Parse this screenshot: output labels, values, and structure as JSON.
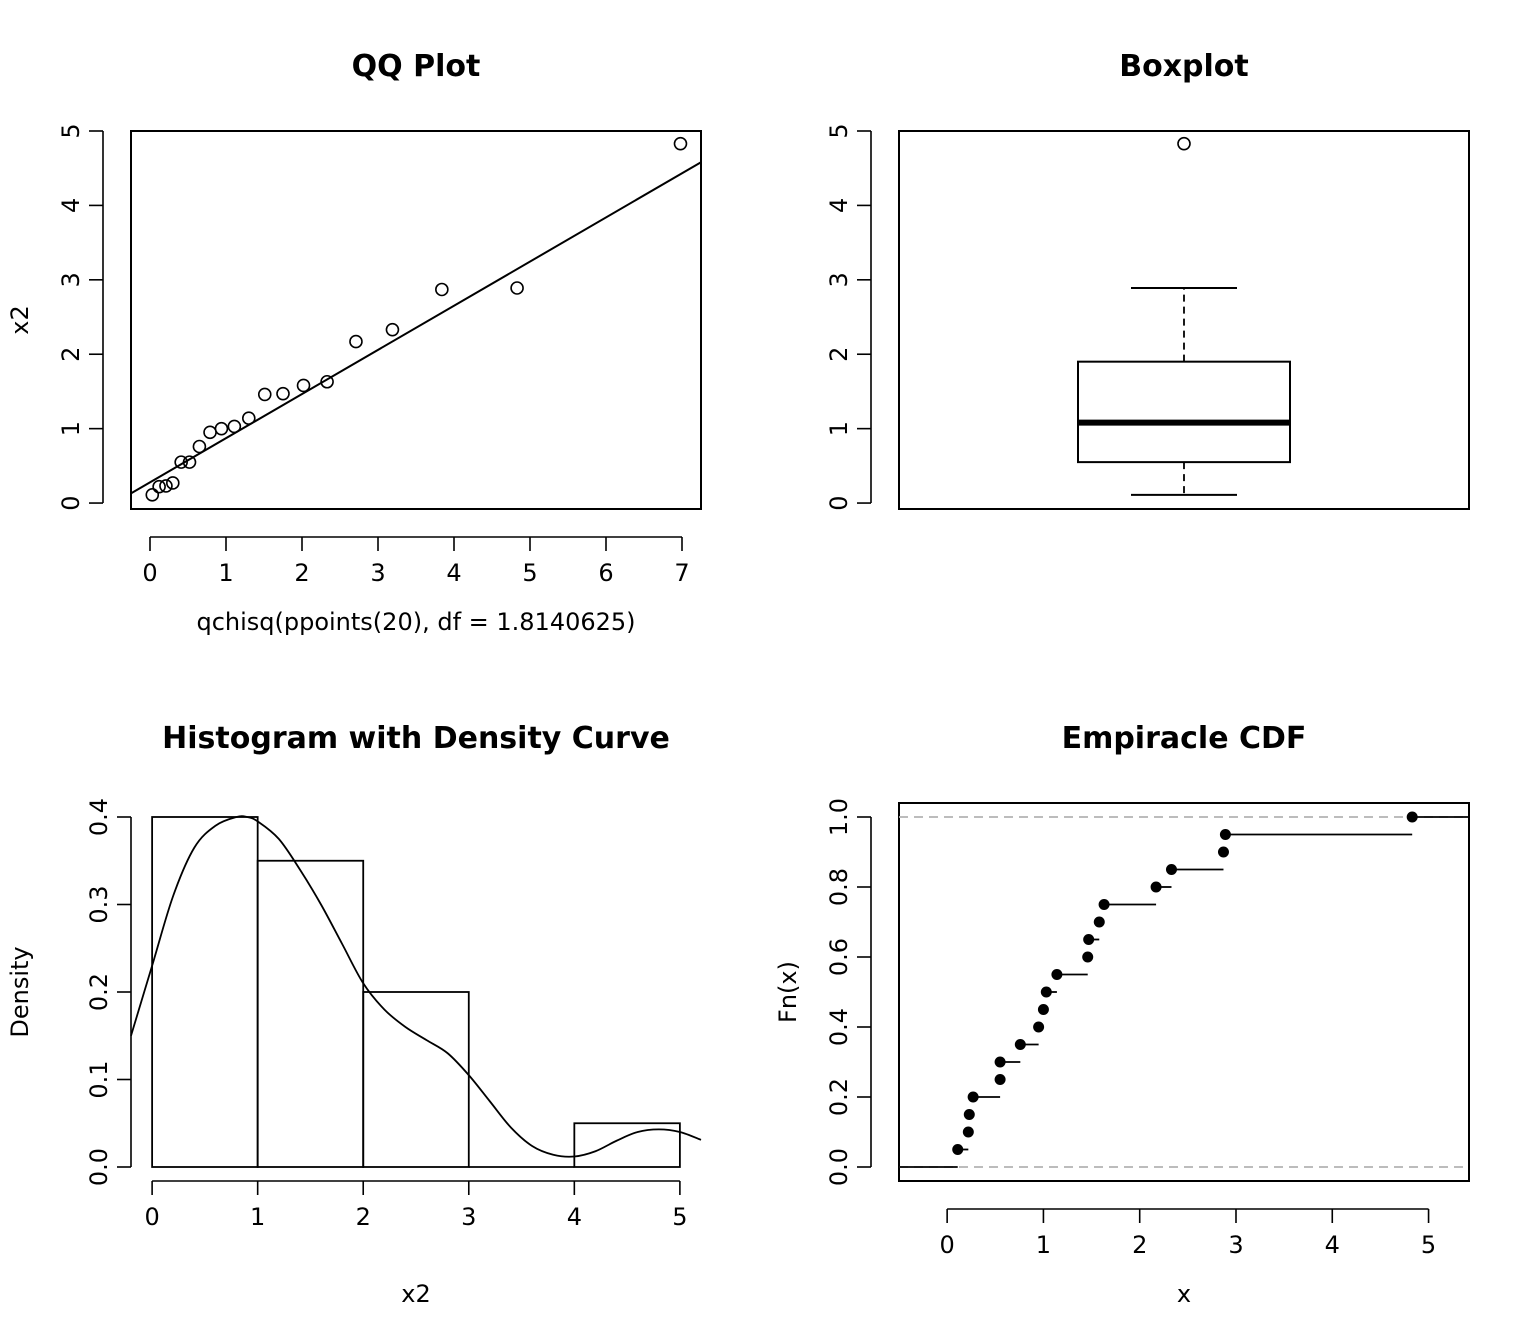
{
  "chart_data": [
    {
      "type": "scatter",
      "title": "QQ Plot",
      "xlabel": "qchisq(ppoints(20), df = 1.8140625)",
      "ylabel": "x2",
      "xlim": [
        -0.25,
        7.25
      ],
      "ylim": [
        -0.08,
        5.0
      ],
      "xticks": [
        "0",
        "1",
        "2",
        "3",
        "4",
        "5",
        "6",
        "7"
      ],
      "yticks": [
        "0",
        "1",
        "2",
        "3",
        "4",
        "5"
      ],
      "points": {
        "x": [
          0.03,
          0.12,
          0.21,
          0.3,
          0.41,
          0.52,
          0.65,
          0.79,
          0.94,
          1.11,
          1.3,
          1.51,
          1.75,
          2.02,
          2.33,
          2.71,
          3.19,
          3.84,
          4.83,
          6.98
        ],
        "y": [
          0.11,
          0.22,
          0.23,
          0.27,
          0.55,
          0.55,
          0.76,
          0.95,
          1.0,
          1.03,
          1.14,
          1.46,
          1.47,
          1.58,
          1.63,
          2.17,
          2.33,
          2.87,
          2.89,
          4.83
        ]
      },
      "line": {
        "x": [
          -0.25,
          7.25
        ],
        "y": [
          0.13,
          4.58
        ]
      },
      "point_style": "open-circle"
    },
    {
      "type": "box",
      "title": "Boxplot",
      "ylim": [
        -0.08,
        5.0
      ],
      "yticks": [
        "0",
        "1",
        "2",
        "3",
        "4",
        "5"
      ],
      "whisker_low": 0.11,
      "q1": 0.55,
      "median": 1.08,
      "q3": 1.9,
      "whisker_high": 2.89,
      "outliers": [
        4.83
      ]
    },
    {
      "type": "bar",
      "title": "Histogram with Density Curve",
      "xlabel": "x2",
      "ylabel": "Density",
      "xlim": [
        -0.2,
        5.2
      ],
      "ylim": [
        0,
        0.4
      ],
      "xticks": [
        "0",
        "1",
        "2",
        "3",
        "4",
        "5"
      ],
      "yticks": [
        "0.0",
        "0.1",
        "0.2",
        "0.3",
        "0.4"
      ],
      "bins": [
        {
          "from": 0,
          "to": 1,
          "density": 0.4
        },
        {
          "from": 1,
          "to": 2,
          "density": 0.35
        },
        {
          "from": 2,
          "to": 3,
          "density": 0.2
        },
        {
          "from": 3,
          "to": 4,
          "density": 0.0
        },
        {
          "from": 4,
          "to": 5,
          "density": 0.05
        }
      ],
      "density_curve": {
        "x": [
          -0.2,
          0.0,
          0.2,
          0.4,
          0.6,
          0.8,
          0.9,
          1.0,
          1.2,
          1.4,
          1.6,
          1.8,
          2.0,
          2.2,
          2.4,
          2.6,
          2.8,
          3.0,
          3.2,
          3.4,
          3.6,
          3.8,
          4.0,
          4.2,
          4.4,
          4.6,
          4.8,
          5.0,
          5.2
        ],
        "y": [
          0.15,
          0.23,
          0.31,
          0.365,
          0.39,
          0.4,
          0.4,
          0.395,
          0.375,
          0.34,
          0.3,
          0.255,
          0.21,
          0.18,
          0.16,
          0.145,
          0.13,
          0.105,
          0.075,
          0.045,
          0.024,
          0.014,
          0.012,
          0.018,
          0.03,
          0.04,
          0.043,
          0.04,
          0.031
        ]
      }
    },
    {
      "type": "step",
      "title": "Empiracle CDF",
      "xlabel": "x",
      "ylabel": "Fn(x)",
      "xlim": [
        -0.5,
        5.42
      ],
      "ylim": [
        -0.04,
        1.04
      ],
      "xticks": [
        "0",
        "1",
        "2",
        "3",
        "4",
        "5"
      ],
      "yticks": [
        "0.0",
        "0.2",
        "0.4",
        "0.6",
        "0.8",
        "1.0"
      ],
      "points": {
        "x": [
          0.11,
          0.22,
          0.23,
          0.27,
          0.55,
          0.55,
          0.76,
          0.95,
          1.0,
          1.03,
          1.14,
          1.46,
          1.47,
          1.58,
          1.63,
          2.17,
          2.33,
          2.87,
          2.89,
          4.83
        ],
        "y": [
          0.05,
          0.1,
          0.15,
          0.2,
          0.25,
          0.3,
          0.35,
          0.4,
          0.45,
          0.5,
          0.55,
          0.6,
          0.65,
          0.7,
          0.75,
          0.8,
          0.85,
          0.9,
          0.95,
          1.0
        ]
      },
      "reference_lines": [
        0,
        1
      ],
      "reference_color": "#b3b3b3"
    }
  ]
}
